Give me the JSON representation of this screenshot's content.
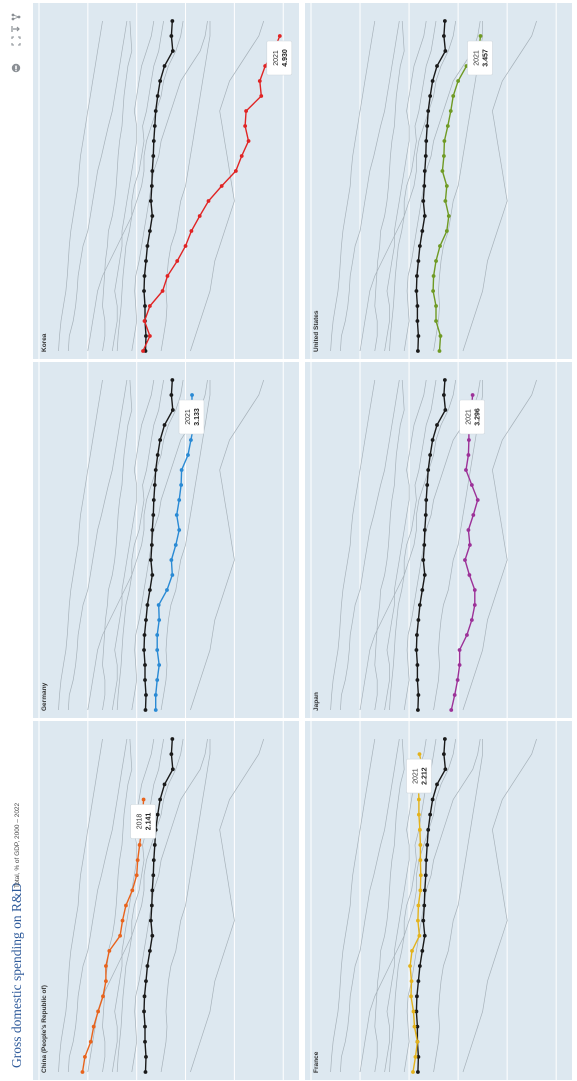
{
  "title": "Gross domestic spending on R&D",
  "subtitle": "Total, % of GDP, 2000 – 2022",
  "colors": {
    "panel_bg": "#dde8f0",
    "oecd_line": "#1a1a1a",
    "background_lines": "#a7b2ba",
    "title": "#2f5b9b"
  },
  "toolbar": [
    "share-icon",
    "download-icon",
    "fullscreen-icon",
    "info-icon"
  ],
  "chart_data": {
    "type": "line",
    "layout": "small multiples, rotated 90°",
    "x_range": [
      2000,
      2022
    ],
    "y_range": [
      0,
      5.2
    ],
    "grid": true,
    "reference_series_color": "#1a1a1a",
    "reference_series": {
      "x": [
        2000,
        2001,
        2002,
        2003,
        2004,
        2005,
        2006,
        2007,
        2008,
        2009,
        2010,
        2011,
        2012,
        2013,
        2014,
        2015,
        2016,
        2017,
        2018,
        2019,
        2020,
        2021,
        2022
      ],
      "values": [
        2.18,
        2.19,
        2.17,
        2.17,
        2.15,
        2.16,
        2.19,
        2.22,
        2.27,
        2.32,
        2.29,
        2.31,
        2.32,
        2.34,
        2.35,
        2.37,
        2.39,
        2.43,
        2.48,
        2.57,
        2.74,
        2.71,
        2.73
      ]
    },
    "background_series": [
      [
        0.6,
        0.62,
        0.7,
        0.75,
        0.78,
        0.8,
        0.85,
        0.9,
        1.0,
        1.05,
        1.1,
        1.15,
        1.2,
        1.28,
        1.35,
        1.42,
        1.5,
        1.55,
        1.6,
        1.65,
        1.7,
        1.75,
        1.8
      ],
      [
        1.0,
        1.05,
        1.1,
        1.15,
        1.2,
        1.3,
        1.45,
        1.6,
        1.75,
        1.9,
        2.0,
        2.1,
        2.15,
        2.15,
        2.2,
        2.3,
        2.4,
        2.5,
        2.55,
        2.65,
        2.8,
        2.9,
        2.95
      ],
      [
        1.3,
        1.35,
        1.35,
        1.3,
        1.32,
        1.34,
        1.36,
        1.4,
        1.42,
        1.5,
        1.55,
        1.58,
        1.6,
        1.62,
        1.65,
        1.7,
        1.72,
        1.74,
        1.78,
        1.82,
        1.9,
        1.88,
        1.86
      ],
      [
        1.6,
        1.62,
        1.65,
        1.68,
        1.7,
        1.72,
        1.75,
        1.78,
        1.85,
        1.9,
        1.9,
        1.95,
        2.05,
        2.1,
        2.15,
        2.12,
        2.2,
        2.25,
        2.3,
        2.35,
        2.45,
        2.5,
        2.55
      ],
      [
        1.9,
        1.95,
        2.0,
        1.98,
        1.96,
        1.98,
        2.05,
        2.1,
        2.15,
        2.2,
        2.25,
        2.3,
        2.35,
        2.45,
        2.5,
        2.6,
        2.7,
        2.8,
        2.9,
        3.1,
        3.3,
        3.4,
        3.45
      ],
      [
        2.5,
        2.55,
        2.6,
        2.62,
        2.6,
        2.62,
        2.65,
        2.7,
        2.8,
        2.85,
        2.9,
        3.0,
        3.05,
        3.1,
        3.15,
        3.2,
        3.25,
        3.3,
        3.35,
        3.4,
        3.45,
        3.5,
        3.5
      ],
      [
        3.1,
        3.2,
        3.3,
        3.4,
        3.5,
        3.55,
        3.6,
        3.7,
        3.8,
        3.9,
        4.0,
        3.95,
        3.9,
        3.85,
        3.8,
        3.75,
        3.7,
        3.8,
        3.9,
        4.1,
        4.3,
        4.5,
        4.6
      ],
      [
        0.4,
        0.42,
        0.45,
        0.5,
        0.55,
        0.58,
        0.6,
        0.62,
        0.65,
        0.7,
        0.75,
        0.8,
        0.82,
        0.85,
        0.9,
        0.95,
        1.0,
        1.05,
        1.1,
        1.15,
        1.2,
        1.25,
        1.3
      ],
      [
        1.5,
        1.55,
        1.6,
        1.6,
        1.55,
        1.6,
        1.65,
        1.7,
        1.7,
        1.75,
        1.8,
        1.85,
        1.9,
        1.95,
        2.0,
        2.0,
        1.95,
        2.0,
        2.05,
        2.1,
        2.2,
        2.3,
        2.35
      ]
    ],
    "panels": [
      {
        "name": "China (People's Republic of)",
        "color": "#e8631c",
        "x_start": 2000,
        "values": [
          0.89,
          0.94,
          1.06,
          1.12,
          1.21,
          1.31,
          1.37,
          1.37,
          1.44,
          1.66,
          1.71,
          1.78,
          1.91,
          2.0,
          2.02,
          2.06,
          2.1,
          2.12,
          2.141
        ],
        "label_year": "2018",
        "label_value": "2.141"
      },
      {
        "name": "France",
        "color": "#e3b21b",
        "x_start": 2000,
        "values": [
          2.08,
          2.13,
          2.17,
          2.11,
          2.09,
          2.04,
          2.05,
          2.02,
          2.06,
          2.21,
          2.18,
          2.19,
          2.23,
          2.24,
          2.23,
          2.23,
          2.22,
          2.2,
          2.2,
          2.19,
          2.28,
          2.212
        ],
        "label_year": "2021",
        "label_value": "2.212"
      },
      {
        "name": "Germany",
        "color": "#2a8ad4",
        "x_start": 2000,
        "values": [
          2.39,
          2.39,
          2.42,
          2.46,
          2.42,
          2.42,
          2.46,
          2.45,
          2.62,
          2.73,
          2.71,
          2.8,
          2.87,
          2.82,
          2.87,
          2.91,
          2.92,
          3.05,
          3.11,
          3.17,
          3.13,
          3.133
        ],
        "label_year": "2021",
        "label_value": "3.133"
      },
      {
        "name": "Japan",
        "color": "#9c3198",
        "x_start": 2000,
        "values": [
          2.86,
          2.93,
          2.99,
          3.03,
          3.03,
          3.18,
          3.28,
          3.34,
          3.34,
          3.23,
          3.14,
          3.24,
          3.21,
          3.31,
          3.4,
          3.28,
          3.16,
          3.21,
          3.22,
          3.22,
          3.27,
          3.296
        ],
        "label_year": "2021",
        "label_value": "3.296"
      },
      {
        "name": "Korea",
        "color": "#e02424",
        "x_start": 2000,
        "values": [
          2.13,
          2.27,
          2.16,
          2.27,
          2.53,
          2.63,
          2.83,
          3.0,
          3.12,
          3.29,
          3.47,
          3.74,
          4.03,
          4.15,
          4.29,
          4.22,
          4.24,
          4.55,
          4.52,
          4.63,
          4.8,
          4.93
        ],
        "label_year": "2021",
        "label_value": "4.930"
      },
      {
        "name": "United States",
        "color": "#6f9a24",
        "x_start": 2000,
        "values": [
          2.62,
          2.64,
          2.55,
          2.55,
          2.49,
          2.5,
          2.55,
          2.63,
          2.77,
          2.81,
          2.74,
          2.77,
          2.68,
          2.71,
          2.72,
          2.79,
          2.85,
          2.9,
          3.0,
          3.17,
          3.42,
          3.457
        ],
        "label_year": "2021",
        "label_value": "3.457"
      }
    ]
  }
}
